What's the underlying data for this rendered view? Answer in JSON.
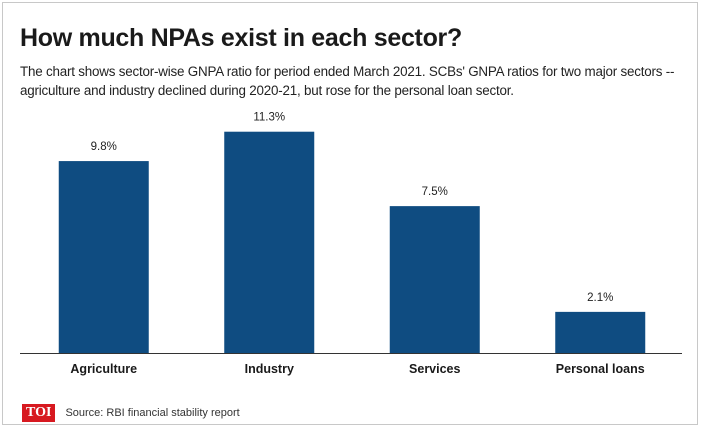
{
  "header": {
    "title": "How much NPAs exist in each sector?",
    "subtitle": "The chart shows sector-wise GNPA ratio for period ended March 2021. SCBs' GNPA ratios for two major sectors -- agriculture and industry declined during 2020-21, but rose for the personal loan sector."
  },
  "footer": {
    "logo": "TOI",
    "source": "Source: RBI financial stability report"
  },
  "colors": {
    "bar": "#0f4c81",
    "axis": "#333333",
    "logo": "#d71920"
  },
  "chart_data": {
    "type": "bar",
    "categories": [
      "Agriculture",
      "Industry",
      "Services",
      "Personal loans"
    ],
    "values": [
      9.8,
      11.3,
      7.5,
      2.1
    ],
    "data_labels": [
      "9.8%",
      "11.3%",
      "7.5%",
      "2.1%"
    ],
    "title": "How much NPAs exist in each sector?",
    "xlabel": "",
    "ylabel": "",
    "ylim": [
      0,
      12
    ],
    "grid": false,
    "legend": "none"
  }
}
